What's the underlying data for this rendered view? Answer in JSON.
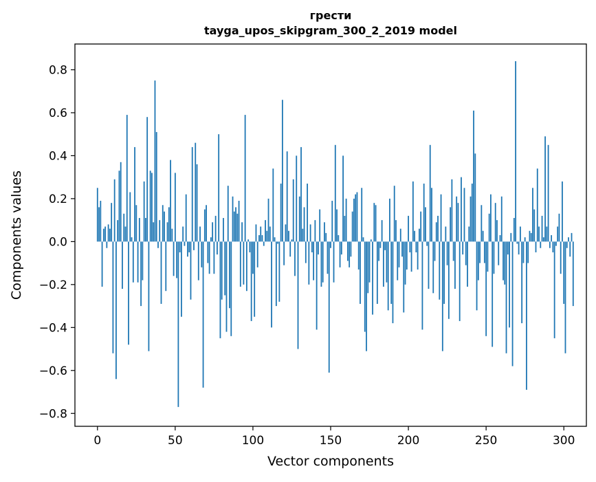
{
  "chart_data": {
    "type": "bar",
    "title_line1": "гpести",
    "title_line2": "tayga_upos_skipgram_300_2_2019 model",
    "xlabel": "Vector components",
    "ylabel": "Components values",
    "xlim": [
      -14.5,
      314.5
    ],
    "ylim": [
      -0.86,
      0.92
    ],
    "x_ticks": [
      0,
      50,
      100,
      150,
      200,
      250,
      300
    ],
    "y_ticks": [
      -0.8,
      -0.6,
      -0.4,
      -0.2,
      0.0,
      0.2,
      0.4,
      0.6,
      0.8
    ],
    "x_tick_labels": [
      "0",
      "50",
      "100",
      "150",
      "200",
      "250",
      "300"
    ],
    "y_tick_labels": [
      "−0.8",
      "−0.6",
      "−0.4",
      "−0.2",
      "0.0",
      "0.2",
      "0.4",
      "0.6",
      "0.8"
    ],
    "bar_color": "#1f77b4",
    "grid": false,
    "values": [
      0.25,
      0.16,
      0.19,
      -0.21,
      0.06,
      0.07,
      -0.03,
      0.08,
      0.06,
      0.18,
      -0.52,
      0.29,
      -0.64,
      0.1,
      0.33,
      0.37,
      -0.22,
      0.13,
      0.07,
      0.59,
      -0.48,
      0.23,
      0.02,
      -0.19,
      0.44,
      0.17,
      -0.19,
      0.11,
      -0.3,
      -0.18,
      0.28,
      0.11,
      0.58,
      -0.51,
      0.33,
      0.32,
      0.09,
      0.75,
      0.51,
      -0.03,
      0.1,
      -0.29,
      0.17,
      0.14,
      -0.23,
      0.09,
      0.16,
      0.38,
      0.06,
      -0.16,
      0.32,
      -0.17,
      -0.77,
      -0.05,
      -0.35,
      0.07,
      -0.02,
      0.22,
      -0.07,
      -0.05,
      -0.27,
      0.44,
      -0.04,
      0.46,
      0.36,
      -0.18,
      0.07,
      -0.12,
      -0.68,
      0.15,
      0.17,
      -0.1,
      -0.15,
      0.02,
      0.09,
      -0.15,
      0.12,
      -0.06,
      0.5,
      -0.45,
      -0.27,
      0.11,
      -0.25,
      -0.42,
      0.26,
      -0.31,
      -0.44,
      0.21,
      0.14,
      0.16,
      0.13,
      0.19,
      -0.21,
      0.09,
      -0.2,
      0.59,
      -0.23,
      0.01,
      -0.05,
      -0.37,
      -0.15,
      -0.35,
      0.08,
      -0.12,
      0.03,
      0.07,
      0.03,
      -0.02,
      0.1,
      0.05,
      0.2,
      0.07,
      -0.4,
      0.34,
      0.02,
      -0.3,
      -0.01,
      -0.28,
      0.27,
      0.66,
      -0.11,
      0.08,
      0.42,
      0.05,
      -0.07,
      0.01,
      0.29,
      -0.16,
      0.4,
      -0.5,
      0.21,
      0.44,
      0.06,
      0.16,
      -0.1,
      0.27,
      -0.2,
      0.08,
      -0.05,
      -0.18,
      0.1,
      -0.41,
      -0.06,
      0.15,
      -0.21,
      -0.19,
      0.09,
      0.04,
      -0.15,
      -0.61,
      -0.03,
      0.19,
      -0.19,
      0.45,
      0.15,
      0.03,
      -0.12,
      -0.06,
      0.4,
      0.12,
      0.2,
      -0.09,
      -0.12,
      -0.07,
      0.14,
      0.2,
      0.22,
      0.23,
      -0.13,
      -0.29,
      0.25,
      0.02,
      -0.42,
      -0.51,
      -0.24,
      -0.19,
      0.01,
      -0.34,
      0.18,
      0.17,
      -0.29,
      -0.09,
      -0.03,
      0.1,
      -0.21,
      -0.04,
      -0.19,
      -0.32,
      0.2,
      -0.29,
      -0.38,
      0.26,
      0.1,
      -0.18,
      -0.12,
      0.06,
      -0.07,
      -0.33,
      -0.2,
      -0.13,
      0.12,
      -0.05,
      -0.14,
      0.28,
      0.05,
      -0.05,
      -0.13,
      0.06,
      0.14,
      -0.41,
      0.27,
      0.16,
      -0.02,
      -0.22,
      0.45,
      0.25,
      -0.24,
      -0.09,
      0.09,
      0.12,
      -0.27,
      0.22,
      -0.51,
      -0.29,
      0.07,
      -0.11,
      -0.36,
      0.16,
      0.29,
      -0.09,
      -0.22,
      0.21,
      0.18,
      -0.37,
      0.3,
      -0.06,
      0.25,
      -0.11,
      -0.21,
      0.07,
      0.21,
      0.27,
      0.61,
      0.41,
      -0.32,
      -0.18,
      -0.1,
      0.17,
      0.05,
      -0.1,
      -0.44,
      -0.14,
      0.13,
      0.22,
      -0.49,
      -0.15,
      0.18,
      0.1,
      -0.11,
      0.03,
      0.21,
      -0.18,
      -0.2,
      -0.52,
      -0.06,
      -0.4,
      0.04,
      -0.58,
      0.11,
      0.84,
      -0.01,
      -0.06,
      0.07,
      -0.38,
      -0.1,
      0.02,
      -0.69,
      -0.1,
      0.05,
      0.04,
      0.25,
      0.15,
      -0.05,
      0.34,
      0.07,
      -0.03,
      0.12,
      0.02,
      0.49,
      0.07,
      0.45,
      -0.03,
      0.03,
      -0.05,
      -0.45,
      -0.02,
      0.07,
      0.13,
      -0.15,
      0.28,
      -0.29,
      -0.52,
      -0.03,
      0.02,
      -0.07,
      0.04,
      -0.3
    ]
  }
}
